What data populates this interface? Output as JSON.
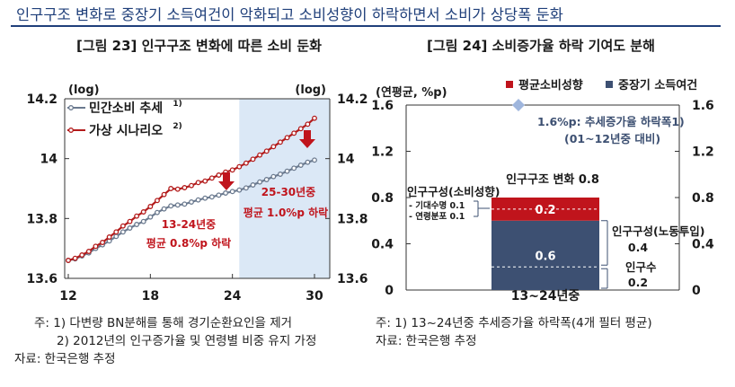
{
  "headline": "인구구조 변화로 중장기 소득여건이 악화되고 소비성향이 하락하면서 소비가 상당폭 둔화",
  "figures": {
    "left_title": "[그림 23] 인구구조 변화에 따른 소비 둔화",
    "right_title": "[그림 24] 소비증가율 하락 기여도 분해"
  },
  "colors": {
    "trend": "#6b7a8f",
    "hypothetical": "#b31b1b",
    "shade": "#dbe8f6",
    "bar_red": "#c0141c",
    "bar_navy": "#3d5072",
    "diamond": "#9fb6dd",
    "annot_red": "#c0141c",
    "annot_navy": "#3d5072"
  },
  "chart_data": [
    {
      "type": "line",
      "title": "[그림 23] 인구구조 변화에 따른 소비 둔화",
      "unit_left": "(log)",
      "unit_right": "(log)",
      "x_ticks": [
        "12",
        "18",
        "24",
        "30"
      ],
      "y_ticks": [
        "13.6",
        "13.8",
        "14",
        "14.2"
      ],
      "xlim": [
        12,
        30
      ],
      "ylim": [
        13.6,
        14.2
      ],
      "legend": [
        "민간소비 추세1)",
        "가상 시나리오2)"
      ],
      "legend_sup": [
        "1)",
        "2)"
      ],
      "legend_names": [
        "민간소비 추세",
        "가상 시나리오"
      ],
      "shaded_region": [
        24.5,
        30.5
      ],
      "series": [
        {
          "name": "민간소비 추세",
          "x": [
            12,
            12.5,
            13,
            13.5,
            14,
            14.5,
            15,
            15.5,
            16,
            16.5,
            17,
            17.5,
            18,
            18.5,
            19,
            19.5,
            20,
            20.5,
            21,
            21.5,
            22,
            22.5,
            23,
            23.5,
            24,
            24.5,
            25,
            25.5,
            26,
            26.5,
            27,
            27.5,
            28,
            28.5,
            29,
            29.5,
            30
          ],
          "y": [
            13.66,
            13.665,
            13.675,
            13.685,
            13.7,
            13.712,
            13.725,
            13.74,
            13.755,
            13.768,
            13.78,
            13.79,
            13.805,
            13.82,
            13.832,
            13.842,
            13.845,
            13.848,
            13.855,
            13.862,
            13.868,
            13.872,
            13.878,
            13.885,
            13.89,
            13.895,
            13.902,
            13.912,
            13.922,
            13.93,
            13.94,
            13.948,
            13.958,
            13.968,
            13.978,
            13.988,
            13.995
          ]
        },
        {
          "name": "가상 시나리오",
          "x": [
            12,
            12.5,
            13,
            13.5,
            14,
            14.5,
            15,
            15.5,
            16,
            16.5,
            17,
            17.5,
            18,
            18.5,
            19,
            19.5,
            20,
            20.5,
            21,
            21.5,
            22,
            22.5,
            23,
            23.5,
            24,
            24.5,
            25,
            25.5,
            26,
            26.5,
            27,
            27.5,
            28,
            28.5,
            29,
            29.5,
            30
          ],
          "y": [
            13.66,
            13.667,
            13.678,
            13.69,
            13.707,
            13.72,
            13.738,
            13.755,
            13.775,
            13.79,
            13.808,
            13.822,
            13.84,
            13.86,
            13.88,
            13.9,
            13.898,
            13.903,
            13.91,
            13.92,
            13.925,
            13.935,
            13.945,
            13.955,
            13.962,
            13.973,
            13.985,
            13.998,
            14.012,
            14.025,
            14.04,
            14.055,
            14.07,
            14.085,
            14.1,
            14.115,
            14.135
          ]
        }
      ],
      "annotations": [
        {
          "lines": [
            "13-24년중",
            "평균 0.8%p 하락"
          ],
          "color": "#c0141c"
        },
        {
          "lines": [
            "25-30년중",
            "평균 1.0%p 하락"
          ],
          "color": "#c0141c"
        }
      ]
    },
    {
      "type": "bar",
      "title": "[그림 24] 소비증가율 하락 기여도 분해",
      "unit_left": "(연평균, %p)",
      "y_ticks": [
        "0",
        "0.4",
        "0.8",
        "1.2",
        "1.6"
      ],
      "ylim": [
        0,
        1.6
      ],
      "categories": [
        "13~24년중"
      ],
      "legend": [
        "평균소비성향",
        "중장기 소득여건"
      ],
      "series": [
        {
          "name": "중장기 소득여건",
          "values": [
            0.6
          ]
        },
        {
          "name": "평균소비성향",
          "values": [
            0.2
          ]
        }
      ],
      "bar_labels": [
        "0.6",
        "0.2"
      ],
      "total_label": "인구구조 변화 0.8",
      "diamond_value": 1.6,
      "diamond_note": [
        "1.6%p: 추세증가율 하락폭1)",
        "(01~12년중 대비)"
      ],
      "left_annotations": {
        "title": "인구구성(소비성향)",
        "items": [
          "- 기대수명 0.1",
          "- 연령분포 0.1"
        ]
      },
      "right_annotations": [
        {
          "lines": [
            "인구구성(노동투입)",
            "0.4"
          ]
        },
        {
          "lines": [
            "인구수",
            "0.2"
          ]
        }
      ]
    }
  ],
  "notes": {
    "left": [
      "주: 1) 다변량 BN분해를 통해 경기순환요인을 제거",
      "2) 2012년의 인구증가율 및 연령별 비중 유지 가정",
      "자료: 한국은행 추정"
    ],
    "right": [
      "주: 1) 13~24년중 추세증가율 하락폭(4개 필터 평균)",
      "자료: 한국은행 추정"
    ]
  }
}
